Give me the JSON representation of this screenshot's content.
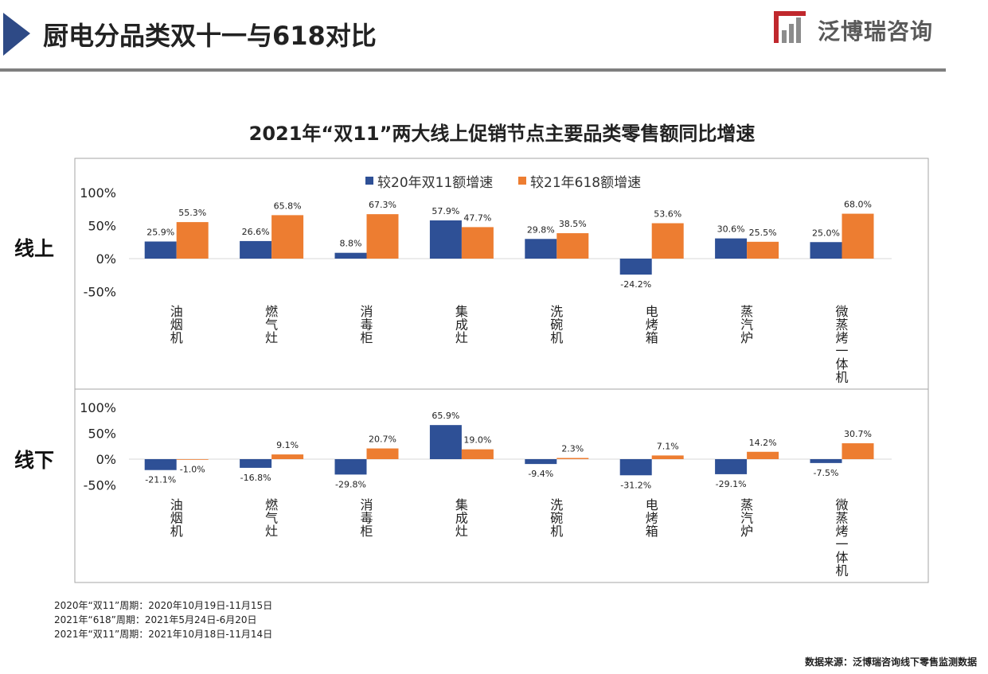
{
  "header": {
    "title": "厨电分品类双十一与618对比",
    "logo_text": "泛博瑞咨询",
    "accent_color": "#2e4a86",
    "logo_color": "#c0282d"
  },
  "chart_data": {
    "type": "bar",
    "title": "2021年“双11”两大线上促销节点主要品类零售额同比增速",
    "categories": [
      "油烟机",
      "燃气灶",
      "消毒柜",
      "集成灶",
      "洗碗机",
      "电烤箱",
      "蒸汽炉",
      "微蒸烤一体机"
    ],
    "legend": [
      "较20年双11额增速",
      "较21年618额增速"
    ],
    "legend_position": "top",
    "series_colors": [
      "#2e5096",
      "#ed7d31"
    ],
    "yticks": [
      "100%",
      "50%",
      "0%",
      "-50%"
    ],
    "ylim": [
      -50,
      100
    ],
    "grid": false,
    "panels": [
      {
        "label": "线上",
        "series": [
          {
            "name": "较20年双11额增速",
            "values": [
              25.9,
              26.6,
              8.8,
              57.9,
              29.8,
              -24.2,
              30.6,
              25.0
            ],
            "labels": [
              "25.9%",
              "26.6%",
              "8.8%",
              "57.9%",
              "29.8%",
              "-24.2%",
              "30.6%",
              "25.0%"
            ]
          },
          {
            "name": "较21年618额增速",
            "values": [
              55.3,
              65.8,
              67.3,
              47.7,
              38.5,
              53.6,
              25.5,
              68.0
            ],
            "labels": [
              "55.3%",
              "65.8%",
              "67.3%",
              "47.7%",
              "38.5%",
              "53.6%",
              "25.5%",
              "68.0%"
            ]
          }
        ]
      },
      {
        "label": "线下",
        "series": [
          {
            "name": "较20年双11额增速",
            "values": [
              -21.1,
              -16.8,
              -29.8,
              65.9,
              -9.4,
              -31.2,
              -29.1,
              -7.5
            ],
            "labels": [
              "-21.1%",
              "-16.8%",
              "-29.8%",
              "65.9%",
              "-9.4%",
              "-31.2%",
              "-29.1%",
              "-7.5%"
            ]
          },
          {
            "name": "较21年618额增速",
            "values": [
              -1.0,
              9.1,
              20.7,
              19.0,
              2.3,
              7.1,
              14.2,
              30.7
            ],
            "labels": [
              "-1.0%",
              "9.1%",
              "20.7%",
              "19.0%",
              "2.3%",
              "7.1%",
              "14.2%",
              "30.7%"
            ]
          }
        ]
      }
    ]
  },
  "footnotes": [
    "2020年“双11”周期：2020年10月19日-11月15日",
    "2021年“618”周期：2021年5月24日-6月20日",
    "2021年“双11”周期：2021年10月18日-11月14日"
  ],
  "source": "数据来源：泛博瑞咨询线下零售监测数据"
}
